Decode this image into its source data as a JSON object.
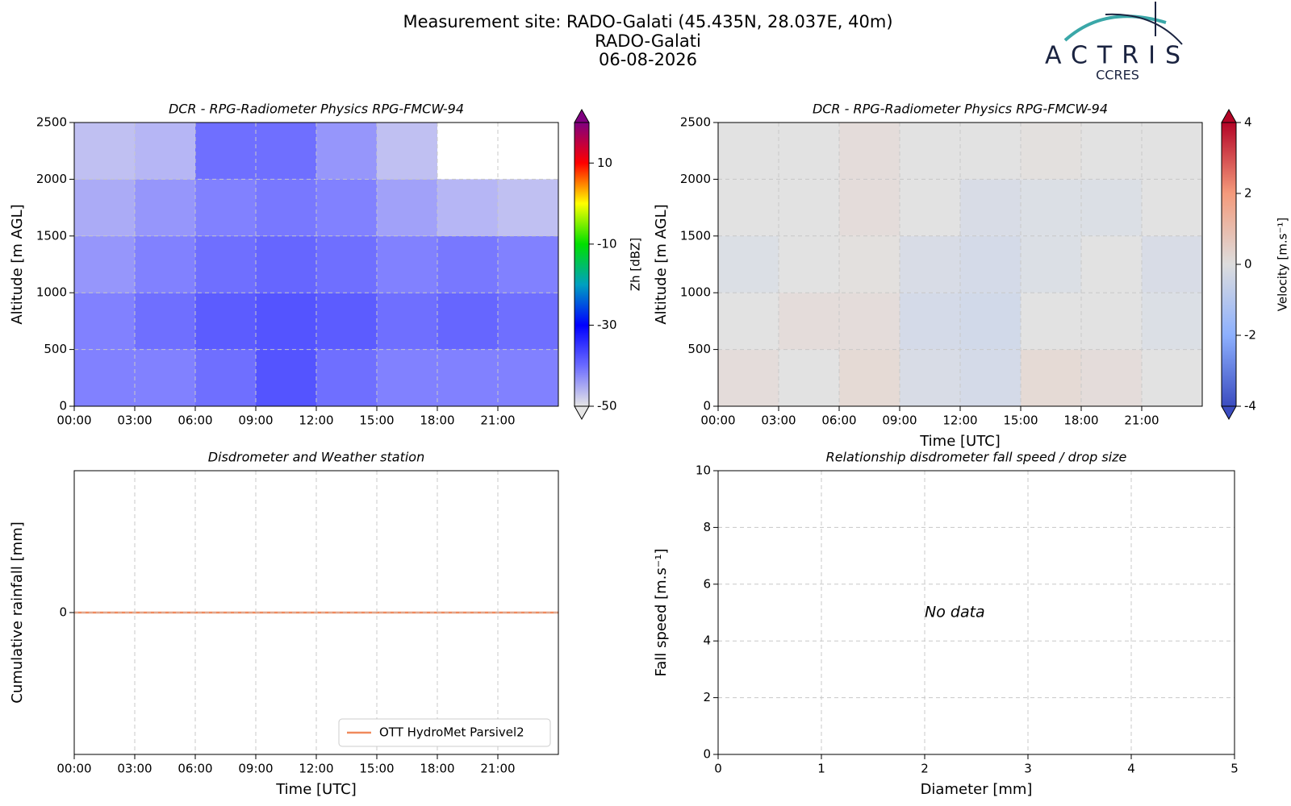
{
  "header": {
    "title": "Measurement site: RADO-Galati (45.435N, 28.037E, 40m)",
    "site": "RADO-Galati",
    "date": "06-08-2026"
  },
  "logo": {
    "name": "ACTRIS",
    "sub": "CCRES"
  },
  "chart_data": [
    {
      "type": "heatmap",
      "title": "DCR - RPG-Radiometer Physics RPG-FMCW-94",
      "ylabel": "Altitude [m AGL]",
      "xbins": [
        0,
        3,
        6,
        9,
        12,
        15,
        18,
        21,
        24
      ],
      "ybins": [
        0,
        500,
        1000,
        1500,
        2000,
        2500
      ],
      "z": [
        [
          -40,
          -40,
          -38,
          -35,
          -38,
          -40,
          -40,
          -40
        ],
        [
          -40,
          -38,
          -36,
          -35,
          -36,
          -38,
          -37,
          -38
        ],
        [
          -42,
          -40,
          -38,
          -37,
          -38,
          -40,
          -39,
          -40
        ],
        [
          -44,
          -42,
          -40,
          -39,
          -40,
          -43,
          -45,
          -46
        ],
        [
          -46,
          -45,
          -38,
          -38,
          -42,
          -46,
          null,
          null
        ]
      ],
      "xlim": [
        0,
        24
      ],
      "ylim": [
        0,
        2500
      ],
      "xticks": [
        {
          "value": 0,
          "label": "00:00"
        },
        {
          "value": 3,
          "label": "03:00"
        },
        {
          "value": 6,
          "label": "06:00"
        },
        {
          "value": 9,
          "label": "09:00"
        },
        {
          "value": 12,
          "label": "12:00"
        },
        {
          "value": 15,
          "label": "15:00"
        },
        {
          "value": 18,
          "label": "18:00"
        },
        {
          "value": 21,
          "label": "21:00"
        }
      ],
      "yticks": [
        0,
        500,
        1000,
        1500,
        2000,
        2500
      ],
      "grid": true,
      "colorbar": {
        "label": "Zh [dBZ]",
        "lim": [
          -50,
          20
        ],
        "ticks": [
          -50,
          -30,
          -10,
          10
        ],
        "colors": [
          "#e6e6e6",
          "#6b6bff",
          "#0000ff",
          "#00a0c0",
          "#00e000",
          "#ffff00",
          "#ff0000",
          "#800080"
        ]
      }
    },
    {
      "type": "heatmap",
      "title": "DCR - RPG-Radiometer Physics RPG-FMCW-94",
      "ylabel": "Altitude [m AGL]",
      "xlabel": "Time [UTC]",
      "xbins": [
        0,
        3,
        6,
        9,
        12,
        15,
        18,
        21,
        24
      ],
      "ybins": [
        0,
        500,
        1000,
        1500,
        2000,
        2500
      ],
      "z": [
        [
          0.2,
          0,
          0.3,
          -0.3,
          -0.4,
          0.3,
          0.2,
          0
        ],
        [
          0,
          0.2,
          0.2,
          -0.4,
          -0.5,
          0,
          0,
          -0.2
        ],
        [
          -0.2,
          0,
          0.1,
          -0.3,
          -0.4,
          -0.2,
          0,
          -0.3
        ],
        [
          0,
          0,
          0.2,
          0,
          -0.3,
          -0.2,
          -0.2,
          0
        ],
        [
          0,
          0,
          0.2,
          0,
          0,
          0.1,
          0,
          0
        ]
      ],
      "xlim": [
        0,
        24
      ],
      "ylim": [
        0,
        2500
      ],
      "xticks": [
        {
          "value": 0,
          "label": "00:00"
        },
        {
          "value": 3,
          "label": "03:00"
        },
        {
          "value": 6,
          "label": "06:00"
        },
        {
          "value": 9,
          "label": "09:00"
        },
        {
          "value": 12,
          "label": "12:00"
        },
        {
          "value": 15,
          "label": "15:00"
        },
        {
          "value": 18,
          "label": "18:00"
        },
        {
          "value": 21,
          "label": "21:00"
        }
      ],
      "yticks": [
        0,
        500,
        1000,
        1500,
        2000,
        2500
      ],
      "grid": true,
      "colorbar": {
        "label": "Velocity [m.s⁻¹]",
        "lim": [
          -4,
          4
        ],
        "ticks": [
          -4,
          -2,
          0,
          2,
          4
        ],
        "colors": [
          "#3b4cc0",
          "#8db0fe",
          "#dddddd",
          "#f49a7b",
          "#b40426"
        ]
      }
    },
    {
      "type": "line",
      "title": "Disdrometer and Weather station",
      "ylabel": "Cumulative rainfall [mm]",
      "xlabel": "Time [UTC]",
      "x": [
        0,
        24
      ],
      "series": [
        {
          "name": "OTT HydroMet Parsivel2",
          "color": "#f08a5d",
          "values": [
            0,
            0
          ]
        }
      ],
      "xlim": [
        0,
        24
      ],
      "ylim": [
        -1,
        1
      ],
      "xticks": [
        {
          "value": 0,
          "label": "00:00"
        },
        {
          "value": 3,
          "label": "03:00"
        },
        {
          "value": 6,
          "label": "06:00"
        },
        {
          "value": 9,
          "label": "09:00"
        },
        {
          "value": 12,
          "label": "12:00"
        },
        {
          "value": 15,
          "label": "15:00"
        },
        {
          "value": 18,
          "label": "18:00"
        },
        {
          "value": 21,
          "label": "21:00"
        }
      ],
      "yticks": [
        0
      ],
      "grid": true,
      "legend": "lower right"
    },
    {
      "type": "scatter",
      "title": "Relationship disdrometer fall speed / drop size",
      "ylabel": "Fall speed [m.s⁻¹]",
      "xlabel": "Diameter [mm]",
      "annotation": "No data",
      "xlim": [
        0,
        5
      ],
      "ylim": [
        0,
        10
      ],
      "xticks": [
        0,
        1,
        2,
        3,
        4,
        5
      ],
      "yticks": [
        0,
        2,
        4,
        6,
        8,
        10
      ],
      "grid": true
    }
  ]
}
